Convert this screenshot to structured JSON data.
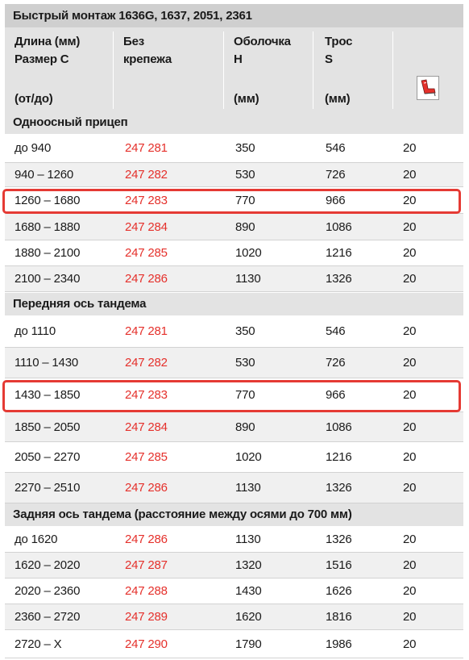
{
  "title": "Быстрый монтаж 1636G, 1637, 2051, 2361",
  "header": {
    "col1": [
      "Длина (мм)",
      "Размер С",
      "(от/до)"
    ],
    "col2": [
      "Без",
      "крепежа"
    ],
    "col3": [
      "Оболочка",
      "Н",
      "(мм)"
    ],
    "col4": [
      "Трос",
      "S",
      "(мм)"
    ],
    "col5_icon": "seat-icon"
  },
  "colors": {
    "red": "#e5302b",
    "highlight": "#e53a34",
    "header_bg": "#e3e3e3"
  },
  "sections": [
    {
      "title": "Одноосный прицеп",
      "rows": [
        {
          "range": "до 940",
          "code": "247 281",
          "h": "350",
          "s": "546",
          "qty": "20"
        },
        {
          "range": "940 – 1260",
          "code": "247 282",
          "h": "530",
          "s": "726",
          "qty": "20"
        },
        {
          "range": "1260 – 1680",
          "code": "247 283",
          "h": "770",
          "s": "966",
          "qty": "20",
          "highlight": true
        },
        {
          "range": "1680 – 1880",
          "code": "247 284",
          "h": "890",
          "s": "1086",
          "qty": "20"
        },
        {
          "range": "1880 – 2100",
          "code": "247 285",
          "h": "1020",
          "s": "1216",
          "qty": "20"
        },
        {
          "range": "2100 – 2340",
          "code": "247 286",
          "h": "1130",
          "s": "1326",
          "qty": "20"
        }
      ]
    },
    {
      "title": "Передняя ось тандема",
      "rows": [
        {
          "range": "до 1110",
          "code": "247 281",
          "h": "350",
          "s": "546",
          "qty": "20"
        },
        {
          "range": "1110 – 1430",
          "code": "247 282",
          "h": "530",
          "s": "726",
          "qty": "20"
        },
        {
          "range": "1430 – 1850",
          "code": "247 283",
          "h": "770",
          "s": "966",
          "qty": "20",
          "highlight": true
        },
        {
          "range": "1850 – 2050",
          "code": "247 284",
          "h": "890",
          "s": "1086",
          "qty": "20"
        },
        {
          "range": "2050 – 2270",
          "code": "247 285",
          "h": "1020",
          "s": "1216",
          "qty": "20"
        },
        {
          "range": "2270 – 2510",
          "code": "247 286",
          "h": "1130",
          "s": "1326",
          "qty": "20"
        }
      ]
    },
    {
      "title": "Задняя ось тандема (расстояние между осями до 700 мм)",
      "rows": [
        {
          "range": "до 1620",
          "code": "247 286",
          "h": "1130",
          "s": "1326",
          "qty": "20"
        },
        {
          "range": "1620 – 2020",
          "code": "247 287",
          "h": "1320",
          "s": "1516",
          "qty": "20"
        },
        {
          "range": "2020 – 2360",
          "code": "247 288",
          "h": "1430",
          "s": "1626",
          "qty": "20"
        },
        {
          "range": "2360 – 2720",
          "code": "247 289",
          "h": "1620",
          "s": "1816",
          "qty": "20"
        },
        {
          "range": "2720 – X",
          "code": "247 290",
          "h": "1790",
          "s": "1986",
          "qty": "20"
        }
      ]
    }
  ]
}
